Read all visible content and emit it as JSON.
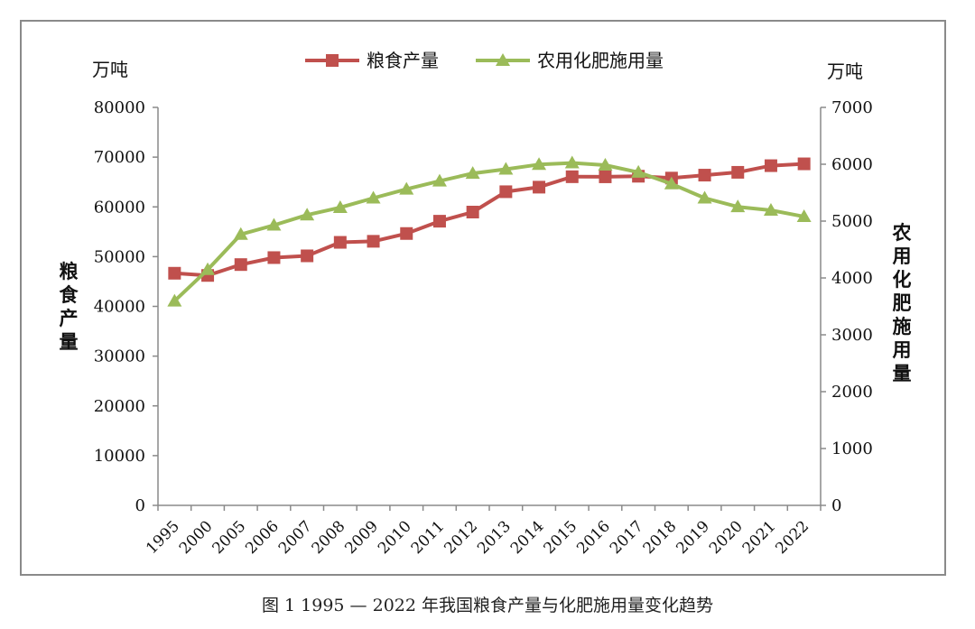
{
  "caption": "图 1  1995 — 2022 年我国粮食产量与化肥施用量变化趋势",
  "chart_data": {
    "type": "line",
    "categories": [
      "1995",
      "2000",
      "2005",
      "2006",
      "2007",
      "2008",
      "2009",
      "2010",
      "2011",
      "2012",
      "2013",
      "2014",
      "2015",
      "2016",
      "2017",
      "2018",
      "2019",
      "2020",
      "2021",
      "2022"
    ],
    "series": [
      {
        "name": "粮食产量",
        "axis": "left",
        "color": "#c0504d",
        "marker": "square",
        "values": [
          46662,
          46218,
          48402,
          49804,
          50160,
          52871,
          53082,
          54648,
          57121,
          58958,
          63048,
          63965,
          66060,
          66044,
          66161,
          65789,
          66384,
          66949,
          68285,
          68653
        ]
      },
      {
        "name": "农用化肥施用量",
        "axis": "right",
        "color": "#9bbb59",
        "marker": "triangle",
        "values": [
          3594,
          4146,
          4766,
          4928,
          5108,
          5239,
          5404,
          5562,
          5704,
          5839,
          5912,
          5996,
          6023,
          5984,
          5859,
          5654,
          5404,
          5251,
          5191,
          5079
        ]
      }
    ],
    "left_axis": {
      "unit": "万吨",
      "title": "粮食产量",
      "ylim": [
        0,
        80000
      ],
      "ticks": [
        "0",
        "10000",
        "20000",
        "30000",
        "40000",
        "50000",
        "60000",
        "70000",
        "80000"
      ]
    },
    "right_axis": {
      "unit": "万吨",
      "title": "农用化肥施用量",
      "ylim": [
        0,
        7000
      ],
      "ticks": [
        "0",
        "1000",
        "2000",
        "3000",
        "4000",
        "5000",
        "6000",
        "7000"
      ]
    },
    "legend": "top",
    "grid": false
  }
}
